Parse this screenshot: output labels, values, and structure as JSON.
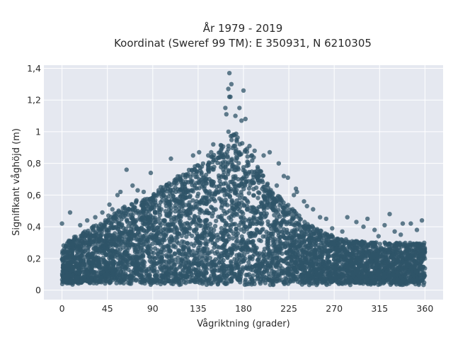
{
  "chart_data": {
    "type": "scatter",
    "title_lines": [
      "År 1979 - 2019",
      "Koordinat (Sweref 99 TM): E 350931, N 6210305"
    ],
    "xlabel": "Vågriktning (grader)",
    "ylabel": "Signifikant våghöjd (m)",
    "xlim": [
      -18,
      378
    ],
    "ylim": [
      -0.06,
      1.42
    ],
    "x_ticks": [
      0,
      45,
      90,
      135,
      180,
      225,
      270,
      315,
      360
    ],
    "x_tick_labels": [
      "0",
      "45",
      "90",
      "135",
      "180",
      "225",
      "270",
      "315",
      "360"
    ],
    "y_ticks": [
      0,
      0.2,
      0.4,
      0.6,
      0.8,
      1.0,
      1.2,
      1.4
    ],
    "y_tick_labels": [
      "0",
      "0,2",
      "0,4",
      "0,6",
      "0,8",
      "1",
      "1,2",
      "1,4"
    ],
    "grid": true,
    "legend": false,
    "marker_color": "#2f5468",
    "plot_background": "#e5e8f0",
    "upper_envelope": {
      "x": [
        0,
        10,
        20,
        30,
        45,
        60,
        75,
        90,
        105,
        120,
        135,
        150,
        160,
        165,
        170,
        180,
        190,
        200,
        210,
        225,
        240,
        255,
        270,
        290,
        315,
        340,
        360
      ],
      "y": [
        0.28,
        0.33,
        0.36,
        0.4,
        0.45,
        0.52,
        0.58,
        0.6,
        0.68,
        0.75,
        0.79,
        0.85,
        0.95,
        1.0,
        1.02,
        0.92,
        0.85,
        0.72,
        0.62,
        0.54,
        0.44,
        0.38,
        0.34,
        0.31,
        0.3,
        0.3,
        0.3
      ]
    },
    "lower_bound": 0.03,
    "outliers": [
      {
        "x": 166,
        "y": 1.37
      },
      {
        "x": 168,
        "y": 1.3
      },
      {
        "x": 165,
        "y": 1.27
      },
      {
        "x": 180,
        "y": 1.26
      },
      {
        "x": 166,
        "y": 1.22
      },
      {
        "x": 167,
        "y": 1.22
      },
      {
        "x": 162,
        "y": 1.15
      },
      {
        "x": 176,
        "y": 1.15
      },
      {
        "x": 163,
        "y": 1.11
      },
      {
        "x": 172,
        "y": 1.1
      },
      {
        "x": 182,
        "y": 1.08
      },
      {
        "x": 178,
        "y": 1.07
      },
      {
        "x": 150,
        "y": 0.92
      },
      {
        "x": 186,
        "y": 0.91
      },
      {
        "x": 191,
        "y": 0.88
      },
      {
        "x": 148,
        "y": 0.87
      },
      {
        "x": 206,
        "y": 0.87
      },
      {
        "x": 145,
        "y": 0.85
      },
      {
        "x": 136,
        "y": 0.87
      },
      {
        "x": 130,
        "y": 0.85
      },
      {
        "x": 200,
        "y": 0.85
      },
      {
        "x": 108,
        "y": 0.83
      },
      {
        "x": 215,
        "y": 0.8
      },
      {
        "x": 64,
        "y": 0.76
      },
      {
        "x": 88,
        "y": 0.74
      },
      {
        "x": 113,
        "y": 0.7
      },
      {
        "x": 220,
        "y": 0.72
      },
      {
        "x": 224,
        "y": 0.71
      },
      {
        "x": 232,
        "y": 0.64
      },
      {
        "x": 233,
        "y": 0.62
      },
      {
        "x": 243,
        "y": 0.53
      },
      {
        "x": 240,
        "y": 0.56
      },
      {
        "x": 230,
        "y": 0.6
      },
      {
        "x": 213,
        "y": 0.66
      },
      {
        "x": 70,
        "y": 0.66
      },
      {
        "x": 98,
        "y": 0.65
      },
      {
        "x": 75,
        "y": 0.63
      },
      {
        "x": 81,
        "y": 0.62
      },
      {
        "x": 55,
        "y": 0.6
      },
      {
        "x": 58,
        "y": 0.62
      },
      {
        "x": 47,
        "y": 0.54
      },
      {
        "x": 50,
        "y": 0.51
      },
      {
        "x": 40,
        "y": 0.49
      },
      {
        "x": 46,
        "y": 0.47
      },
      {
        "x": 8,
        "y": 0.49
      },
      {
        "x": 25,
        "y": 0.44
      },
      {
        "x": 0,
        "y": 0.42
      },
      {
        "x": 18,
        "y": 0.41
      },
      {
        "x": 33,
        "y": 0.46
      },
      {
        "x": 249,
        "y": 0.51
      },
      {
        "x": 256,
        "y": 0.46
      },
      {
        "x": 262,
        "y": 0.45
      },
      {
        "x": 283,
        "y": 0.46
      },
      {
        "x": 268,
        "y": 0.39
      },
      {
        "x": 292,
        "y": 0.43
      },
      {
        "x": 303,
        "y": 0.45
      },
      {
        "x": 325,
        "y": 0.48
      },
      {
        "x": 338,
        "y": 0.42
      },
      {
        "x": 346,
        "y": 0.42
      },
      {
        "x": 357,
        "y": 0.44
      },
      {
        "x": 320,
        "y": 0.41
      },
      {
        "x": 299,
        "y": 0.4
      },
      {
        "x": 310,
        "y": 0.38
      },
      {
        "x": 330,
        "y": 0.37
      },
      {
        "x": 352,
        "y": 0.38
      },
      {
        "x": 278,
        "y": 0.37
      },
      {
        "x": 314,
        "y": 0.34
      },
      {
        "x": 336,
        "y": 0.35
      }
    ]
  }
}
